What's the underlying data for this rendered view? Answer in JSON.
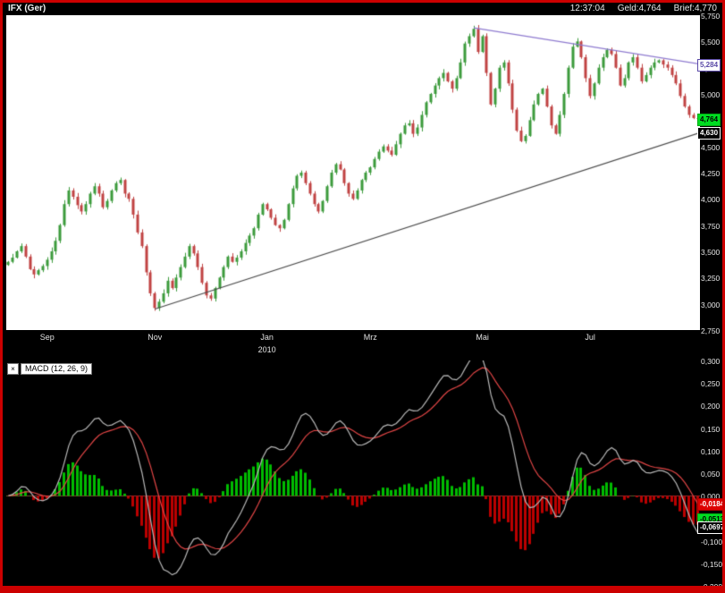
{
  "header": {
    "symbol": "IFX (Ger)",
    "time": "12:37:04",
    "geld": "Geld:4,764",
    "brief": "Brief:4,770"
  },
  "macd_header": {
    "close_glyph": "×"
  },
  "chart_data": [
    {
      "type": "candlestick",
      "symbol": "IFX (Ger)",
      "up_color": "#3c9b3c",
      "down_color": "#c04343",
      "background": "#ffffff",
      "y_axis": {
        "min": 2.75,
        "max": 5.75,
        "ticks": [
          {
            "v": 5.75,
            "t": "5,750"
          },
          {
            "v": 5.5,
            "t": "5,500"
          },
          {
            "v": 5.25,
            "t": "5,250"
          },
          {
            "v": 5.0,
            "t": "5,000"
          },
          {
            "v": 4.75,
            "t": "4,750"
          },
          {
            "v": 4.5,
            "t": "4,500"
          },
          {
            "v": 4.25,
            "t": "4,250"
          },
          {
            "v": 4.0,
            "t": "4,000"
          },
          {
            "v": 3.75,
            "t": "3,750"
          },
          {
            "v": 3.5,
            "t": "3,500"
          },
          {
            "v": 3.25,
            "t": "3,250"
          },
          {
            "v": 3.0,
            "t": "3,000"
          },
          {
            "v": 2.75,
            "t": "2,750"
          }
        ]
      },
      "x_axis": {
        "months": [
          {
            "label": "Sep",
            "bar": 9
          },
          {
            "label": "Nov",
            "bar": 34
          },
          {
            "label": "Jan",
            "bar": 60
          },
          {
            "label": "Mrz",
            "bar": 84
          },
          {
            "label": "Mai",
            "bar": 110
          },
          {
            "label": "Jul",
            "bar": 135
          }
        ],
        "year": {
          "label": "2010",
          "bar": 60
        }
      },
      "closes": [
        3.4,
        3.44,
        3.5,
        3.55,
        3.45,
        3.33,
        3.28,
        3.32,
        3.36,
        3.42,
        3.5,
        3.6,
        3.75,
        3.95,
        4.08,
        4.02,
        3.94,
        3.88,
        3.95,
        4.05,
        4.12,
        4.05,
        3.92,
        3.98,
        4.08,
        4.15,
        4.18,
        4.05,
        4.0,
        3.85,
        3.68,
        3.55,
        3.3,
        3.1,
        2.96,
        3.02,
        3.1,
        3.22,
        3.15,
        3.25,
        3.35,
        3.45,
        3.55,
        3.48,
        3.35,
        3.2,
        3.08,
        3.05,
        3.15,
        3.25,
        3.35,
        3.45,
        3.4,
        3.44,
        3.5,
        3.58,
        3.65,
        3.72,
        3.85,
        3.95,
        3.9,
        3.82,
        3.75,
        3.72,
        3.8,
        3.95,
        4.1,
        4.22,
        4.25,
        4.15,
        4.05,
        3.95,
        3.88,
        3.98,
        4.12,
        4.25,
        4.33,
        4.28,
        4.15,
        4.05,
        4.0,
        4.08,
        4.18,
        4.25,
        4.3,
        4.38,
        4.45,
        4.5,
        4.46,
        4.42,
        4.52,
        4.62,
        4.7,
        4.72,
        4.62,
        4.68,
        4.8,
        4.92,
        5.0,
        5.08,
        5.15,
        5.2,
        5.12,
        5.05,
        5.15,
        5.3,
        5.48,
        5.55,
        5.62,
        5.4,
        5.55,
        5.2,
        4.9,
        5.05,
        5.25,
        5.3,
        5.1,
        4.85,
        4.65,
        4.55,
        4.6,
        4.75,
        4.9,
        5.0,
        5.05,
        4.88,
        4.7,
        4.62,
        4.8,
        5.0,
        5.25,
        5.45,
        5.5,
        5.35,
        5.15,
        4.98,
        5.1,
        5.25,
        5.35,
        5.42,
        5.38,
        5.25,
        5.08,
        5.15,
        5.3,
        5.35,
        5.25,
        5.12,
        5.18,
        5.25,
        5.3,
        5.32,
        5.28,
        5.25,
        5.18,
        5.1,
        4.98,
        4.88,
        4.8,
        4.77,
        4.764
      ],
      "trendlines": [
        {
          "name": "ascending-support-line",
          "from_bar": 34,
          "from_value": 2.95,
          "to_value": 4.63,
          "color": "#4a4a4a"
        },
        {
          "name": "descending-resistance-line",
          "from_bar": 108,
          "from_value": 5.63,
          "to_value": 5.284,
          "color": "#8f7bd0"
        }
      ],
      "badges": [
        {
          "value": 5.284,
          "label": "5,284",
          "style": "purple"
        },
        {
          "value": 4.764,
          "label": "4,764",
          "style": "green"
        },
        {
          "value": 4.63,
          "label": "4,630",
          "style": "dark"
        }
      ]
    },
    {
      "type": "macd",
      "label": "MACD (12, 26, 9)",
      "params": [
        12,
        26,
        9
      ],
      "background": "#000000",
      "y_axis": {
        "min": -0.2,
        "max": 0.3,
        "ticks": [
          {
            "v": 0.3,
            "t": "0,300"
          },
          {
            "v": 0.25,
            "t": "0,250"
          },
          {
            "v": 0.2,
            "t": "0,200"
          },
          {
            "v": 0.15,
            "t": "0,150"
          },
          {
            "v": 0.1,
            "t": "0,100"
          },
          {
            "v": 0.05,
            "t": "0,050"
          },
          {
            "v": 0.0,
            "t": "0,000"
          },
          {
            "v": -0.05,
            "t": "-0,050"
          },
          {
            "v": -0.1,
            "t": "-0,100"
          },
          {
            "v": -0.15,
            "t": "-0,150"
          },
          {
            "v": -0.2,
            "t": "-0,200"
          }
        ]
      },
      "derive_from": "closes",
      "line_colors": {
        "macd": "#b8b8b8",
        "signal": "#e04545"
      },
      "hist_colors": {
        "pos": "#00bb00",
        "neg": "#bb0000"
      },
      "zero_line_color": "#883333",
      "badges": [
        {
          "value": -0.0184,
          "label": "-0,0184",
          "style": "red"
        },
        {
          "value": -0.0513,
          "label": "-0,0513",
          "style": "green"
        },
        {
          "value": -0.0697,
          "label": "-0,0697",
          "style": "dark"
        }
      ]
    }
  ]
}
